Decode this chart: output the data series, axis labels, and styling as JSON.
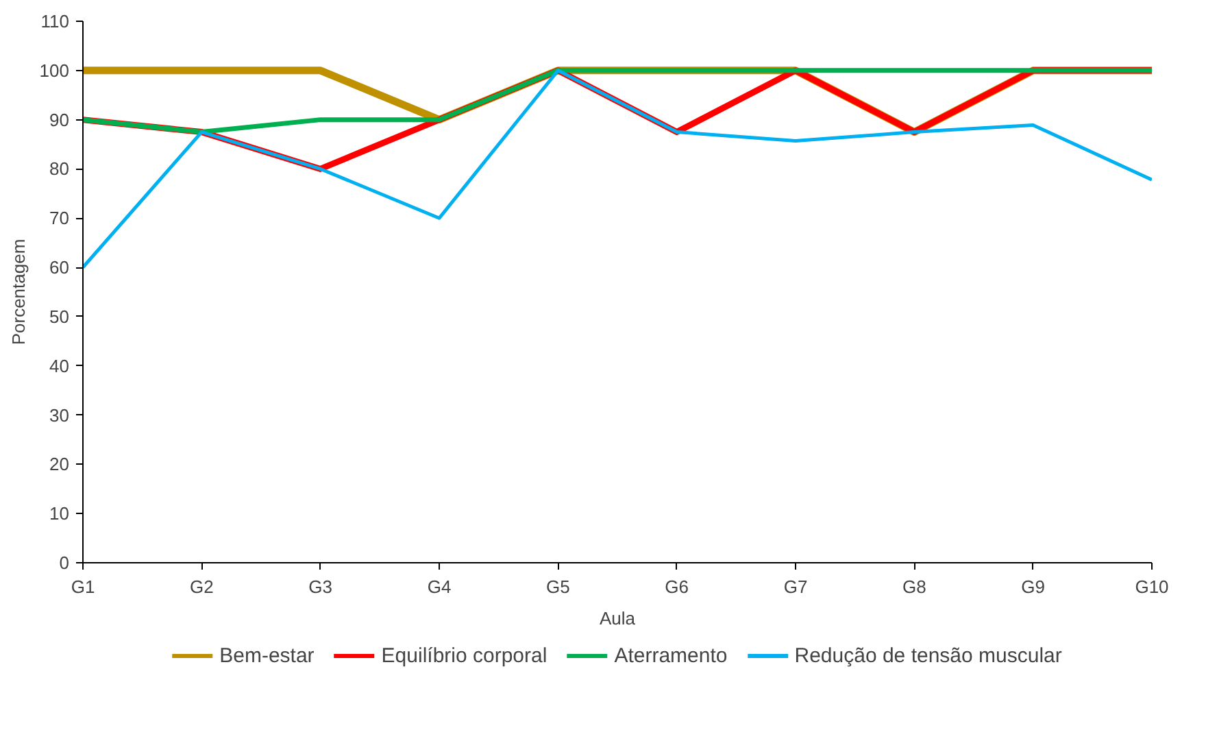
{
  "chart_data": {
    "type": "line",
    "xlabel": "Aula",
    "ylabel": "Porcentagem",
    "categories": [
      "G1",
      "G2",
      "G3",
      "G4",
      "G5",
      "G6",
      "G7",
      "G8",
      "G9",
      "G10"
    ],
    "series": [
      {
        "name": "Bem-estar",
        "color": "#bf9000",
        "values": [
          100,
          100,
          100,
          90,
          100,
          100,
          100,
          87.5,
          100,
          100
        ]
      },
      {
        "name": "Equilíbrio corporal",
        "color": "#ff0000",
        "values": [
          90,
          87.5,
          80,
          90,
          100,
          87.5,
          100,
          87.5,
          100,
          100
        ]
      },
      {
        "name": "Aterramento",
        "color": "#00b050",
        "values": [
          90,
          87.5,
          90,
          90,
          100,
          100,
          100,
          100,
          100,
          100
        ]
      },
      {
        "name": "Redução de tensão muscular",
        "color": "#00b0f0",
        "values": [
          60,
          87.5,
          80,
          70,
          100,
          87.5,
          85.7,
          87.5,
          88.9,
          77.8
        ]
      }
    ],
    "ylim": [
      0,
      110
    ],
    "yticks": [
      0,
      10,
      20,
      30,
      40,
      50,
      60,
      70,
      80,
      90,
      100,
      110
    ],
    "grid": false,
    "legend": "bottom",
    "marker": "none",
    "line_style": "solid"
  }
}
